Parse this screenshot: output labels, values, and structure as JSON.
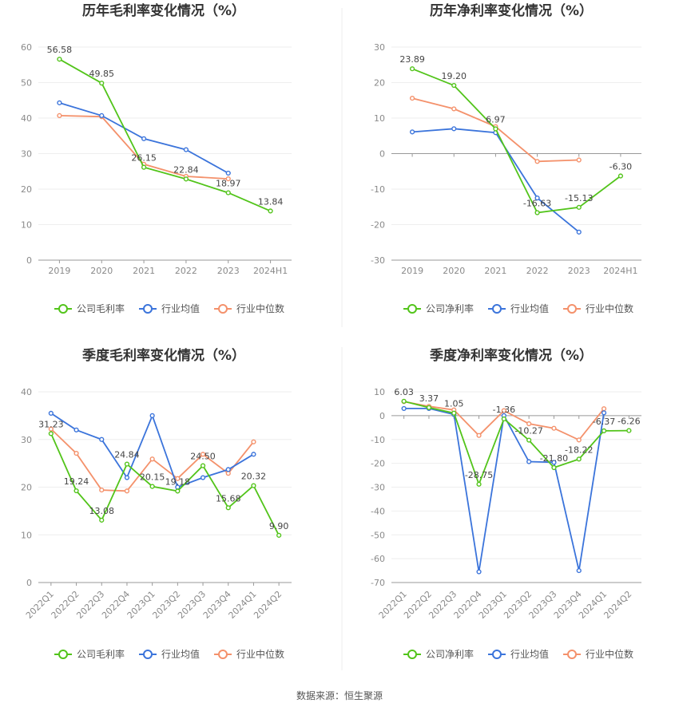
{
  "colors": {
    "company": "#52c41a",
    "avg": "#3b74db",
    "median": "#f4916b"
  },
  "source_text": "数据来源：恒生聚源",
  "chart_data": [
    {
      "type": "line",
      "title": "历年毛利率变化情况（%）",
      "categories": [
        "2019",
        "2020",
        "2021",
        "2022",
        "2023",
        "2024H1"
      ],
      "ylim": [
        0,
        60
      ],
      "yticks": [
        0,
        10,
        20,
        30,
        40,
        50,
        60
      ],
      "rotate_x": false,
      "series": [
        {
          "name": "公司毛利率",
          "key": "company",
          "values": [
            56.58,
            49.85,
            26.15,
            22.84,
            18.97,
            13.84
          ],
          "labels": [
            "56.58",
            "49.85",
            "26.15",
            "22.84",
            "18.97",
            "13.84"
          ]
        },
        {
          "name": "行业均值",
          "key": "avg",
          "values": [
            44.3,
            40.7,
            34.2,
            31.1,
            24.5,
            null
          ]
        },
        {
          "name": "行业中位数",
          "key": "median",
          "values": [
            40.7,
            40.4,
            27.0,
            23.6,
            22.9,
            null
          ]
        }
      ],
      "legend": "bottom"
    },
    {
      "type": "line",
      "title": "历年净利率变化情况（%）",
      "categories": [
        "2019",
        "2020",
        "2021",
        "2022",
        "2023",
        "2024H1"
      ],
      "ylim": [
        -30,
        30
      ],
      "yticks": [
        -30,
        -20,
        -10,
        0,
        10,
        20,
        30
      ],
      "rotate_x": false,
      "series": [
        {
          "name": "公司净利率",
          "key": "company",
          "values": [
            23.89,
            19.2,
            6.97,
            -16.63,
            -15.13,
            -6.3
          ],
          "labels": [
            "23.89",
            "19.20",
            "6.97",
            "-16.63",
            "-15.13",
            "-6.30"
          ]
        },
        {
          "name": "行业均值",
          "key": "avg",
          "values": [
            6.1,
            7.0,
            5.9,
            -12.5,
            -22.1,
            null
          ]
        },
        {
          "name": "行业中位数",
          "key": "median",
          "values": [
            15.6,
            12.6,
            7.6,
            -2.2,
            -1.8,
            null
          ]
        }
      ],
      "legend": "bottom"
    },
    {
      "type": "line",
      "title": "季度毛利率变化情况（%）",
      "categories": [
        "2022Q1",
        "2022Q2",
        "2022Q3",
        "2022Q4",
        "2023Q1",
        "2023Q2",
        "2023Q3",
        "2023Q4",
        "2024Q1",
        "2024Q2"
      ],
      "ylim": [
        0,
        40
      ],
      "yticks": [
        0,
        10,
        20,
        30,
        40
      ],
      "rotate_x": true,
      "series": [
        {
          "name": "公司毛利率",
          "key": "company",
          "values": [
            31.23,
            19.24,
            13.08,
            24.84,
            20.15,
            19.18,
            24.5,
            15.68,
            20.32,
            9.9
          ],
          "labels": [
            "31.23",
            "19.24",
            "13.08",
            "24.84",
            "20.15",
            "19.18",
            "24.50",
            "15.68",
            "20.32",
            "9.90"
          ]
        },
        {
          "name": "行业均值",
          "key": "avg",
          "values": [
            35.5,
            32.0,
            30.0,
            22.0,
            35.0,
            20.0,
            22.0,
            23.7,
            26.9,
            null
          ]
        },
        {
          "name": "行业中位数",
          "key": "median",
          "values": [
            32.2,
            27.1,
            19.4,
            19.2,
            25.9,
            21.8,
            26.9,
            22.9,
            29.5,
            null
          ]
        }
      ],
      "legend": "bottom"
    },
    {
      "type": "line",
      "title": "季度净利率变化情况（%）",
      "categories": [
        "2022Q1",
        "2022Q2",
        "2022Q3",
        "2022Q4",
        "2023Q1",
        "2023Q2",
        "2023Q3",
        "2023Q4",
        "2024Q1",
        "2024Q2"
      ],
      "ylim": [
        -70,
        10
      ],
      "yticks": [
        -70,
        -60,
        -50,
        -40,
        -30,
        -20,
        -10,
        0,
        10
      ],
      "rotate_x": true,
      "series": [
        {
          "name": "公司净利率",
          "key": "company",
          "values": [
            6.03,
            3.37,
            1.05,
            -28.75,
            -1.36,
            -10.27,
            -21.8,
            -18.22,
            -6.37,
            -6.26
          ],
          "labels": [
            "6.03",
            "3.37",
            "1.05",
            "-28.75",
            "-1.36",
            "-10.27",
            "-21.80",
            "-18.22",
            "-6.37",
            "-6.26"
          ]
        },
        {
          "name": "行业均值",
          "key": "avg",
          "values": [
            3.0,
            3.0,
            0.5,
            -65.5,
            0.0,
            -19.3,
            -19.6,
            -65.0,
            1.2,
            null
          ]
        },
        {
          "name": "行业中位数",
          "key": "median",
          "values": [
            5.9,
            3.9,
            2.4,
            -8.3,
            2.1,
            -3.4,
            -5.3,
            -10.2,
            2.9,
            null
          ]
        }
      ],
      "legend": "bottom"
    }
  ]
}
